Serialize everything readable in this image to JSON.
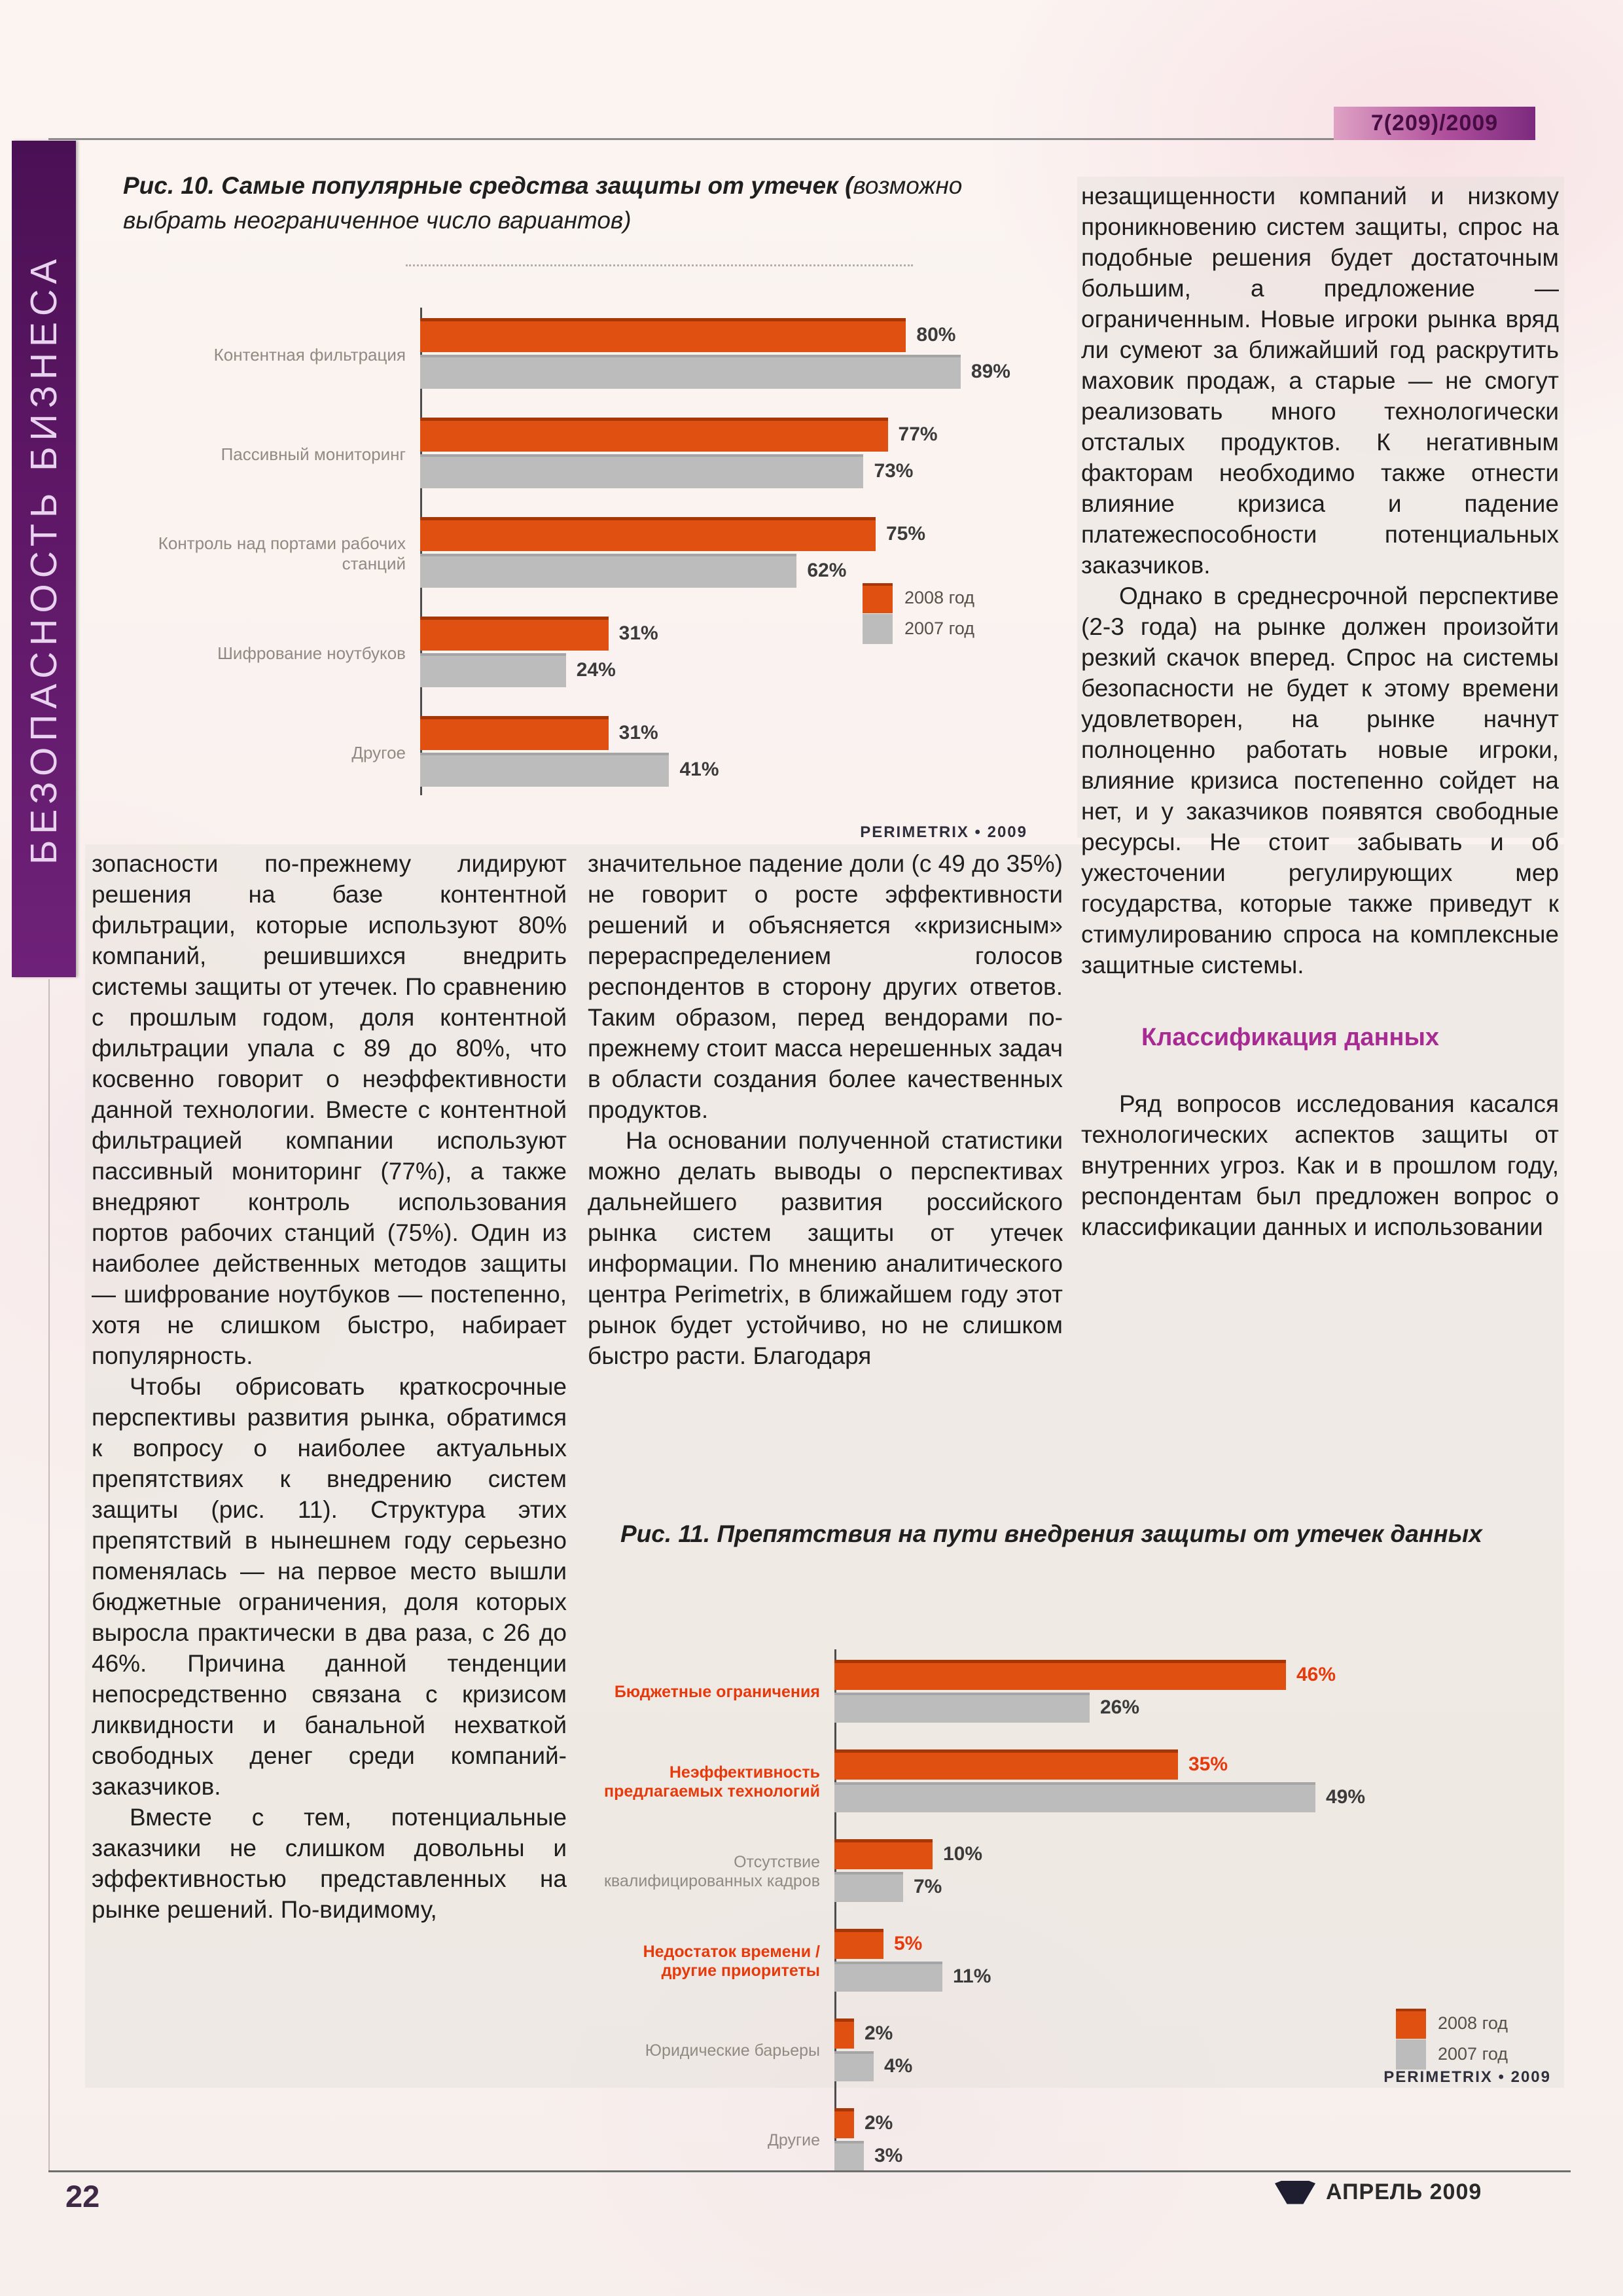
{
  "page": {
    "issue_badge": "7(209)/2009",
    "sidebar_vertical_text": "БЕЗОПАСНОСТЬ БИЗНЕСА",
    "page_number": "22",
    "footer_month": "АПРЕЛЬ 2009"
  },
  "figure10": {
    "caption_lead": "Рис. 10. Самые популярные средства защиты от утечек (",
    "caption_note": "возможно выбрать неограниченное число вариантов)"
  },
  "figure11": {
    "caption": "Рис. 11. Препятствия на пути внедрения защиты от утечек данных"
  },
  "article": {
    "heading_classification": "Классификация данных",
    "col_left": [
      "зопасности по-прежнему лидируют решения на базе контентной фильтрации, которые используют 80% компаний, решившихся внедрить системы защиты от утечек. По сравнению с прошлым годом, доля контентной фильтрации упала с 89 до 80%, что косвенно говорит о неэффективности данной технологии. Вместе с контентной фильтрацией компании используют пассивный мониторинг (77%), а также внедряют контроль использования портов рабочих станций (75%). Один из наиболее действенных методов защиты — шифрование ноутбуков — постепенно, хотя не слишком быстро, набирает популярность.",
      "Чтобы обрисовать краткосрочные перспективы развития рынка, обратимся к вопросу о наиболее актуальных препятствиях к внедрению систем защиты (рис. 11). Структура этих препятствий в нынешнем году серьезно поменялась — на первое место вышли бюджетные ограничения, доля которых выросла практически в два раза, с 26 до 46%. Причина данной тенденции непосредственно связана с кризисом ликвидности и банальной нехваткой свободных денег среди компаний-заказчиков.",
      "Вместе с тем, потенциальные заказчики не слишком довольны и эффективностью представленных на рынке решений. По-видимому,"
    ],
    "col_middle": [
      "значительное падение доли (с 49 до 35%) не говорит о росте эффективности решений и объясняется «кризисным» перераспределением голосов респондентов в сторону других ответов. Таким образом, перед вендорами по-прежнему стоит масса нерешенных задач в области создания более качественных продуктов.",
      "На основании полученной статистики можно делать выводы о перспективах дальнейшего развития российского рынка систем защиты от утечек информации. По мнению аналитического центра Perimetrix, в ближайшем году этот рынок будет устойчиво, но не слишком быстро расти. Благодаря"
    ],
    "col_right": [
      "незащищенности компаний и низкому проникновению систем защиты, спрос на подобные решения будет достаточным большим, а предложение — ограниченным. Новые игроки рынка вряд ли сумеют за ближайший год раскрутить маховик продаж, а старые — не смогут реализовать много технологически отсталых продуктов. К негативным факторам необходимо также отнести влияние кризиса и падение платежеспособности потенциальных заказчиков.",
      "Однако в среднесрочной перспективе (2-3 года) на рынке должен произойти резкий скачок вперед. Спрос на системы безопасности не будет к этому времени удовлетворен, на рынке начнут полноценно работать новые игроки, влияние кризиса постепенно сойдет на нет, и у заказчиков появятся свободные ресурсы. Не стоит забывать и об ужесточении регулирующих мер государства, которые также приведут к стимулированию спроса на комплексные защитные системы."
    ],
    "col_right_after": [
      "Ряд вопросов исследования касался технологических аспектов защиты от внутренних угроз. Как и в прошлом году, респондентам был предложен вопрос о классификации данных и использовании"
    ]
  },
  "chart_data": [
    {
      "type": "bar",
      "orientation": "horizontal",
      "title": "Рис. 10. Самые популярные средства защиты от утечек (возможно выбрать неограниченное число вариантов)",
      "categories": [
        "Контентная фильтрация",
        "Пассивный мониторинг",
        "Контроль над портами рабочих станций",
        "Шифрование ноутбуков",
        "Другое"
      ],
      "series": [
        {
          "name": "2008 год",
          "values": [
            80,
            77,
            75,
            31,
            31
          ]
        },
        {
          "name": "2007 год",
          "values": [
            89,
            73,
            62,
            24,
            41
          ]
        }
      ],
      "label_emphasis": [
        false,
        false,
        false,
        false,
        false
      ],
      "value_suffix": "%",
      "scale_max": 100,
      "xlim": [
        0,
        100
      ],
      "grid": false,
      "legend_position": "right",
      "source": "PERIMETRIX • 2009",
      "colors": {
        "2008": "#e05010",
        "2007": "#bcbcbc"
      }
    },
    {
      "type": "bar",
      "orientation": "horizontal",
      "title": "Рис. 11. Препятствия на пути внедрения защиты от утечек данных",
      "categories": [
        "Бюджетные ограничения",
        "Неэффективность предлагаемых технологий",
        "Отсутствие квалифицированных кадров",
        "Недостаток времени / другие приоритеты",
        "Юридические барьеры",
        "Другие"
      ],
      "series": [
        {
          "name": "2008 год",
          "values": [
            46,
            35,
            10,
            5,
            2,
            2
          ]
        },
        {
          "name": "2007 год",
          "values": [
            26,
            49,
            7,
            11,
            4,
            3
          ]
        }
      ],
      "label_emphasis": [
        true,
        true,
        false,
        true,
        false,
        false
      ],
      "value_suffix": "%",
      "scale_max": 75,
      "xlim": [
        0,
        50
      ],
      "grid": false,
      "legend_position": "right",
      "source": "PERIMETRIX • 2009",
      "colors": {
        "2008": "#e05010",
        "2007": "#bcbcbc"
      }
    }
  ]
}
